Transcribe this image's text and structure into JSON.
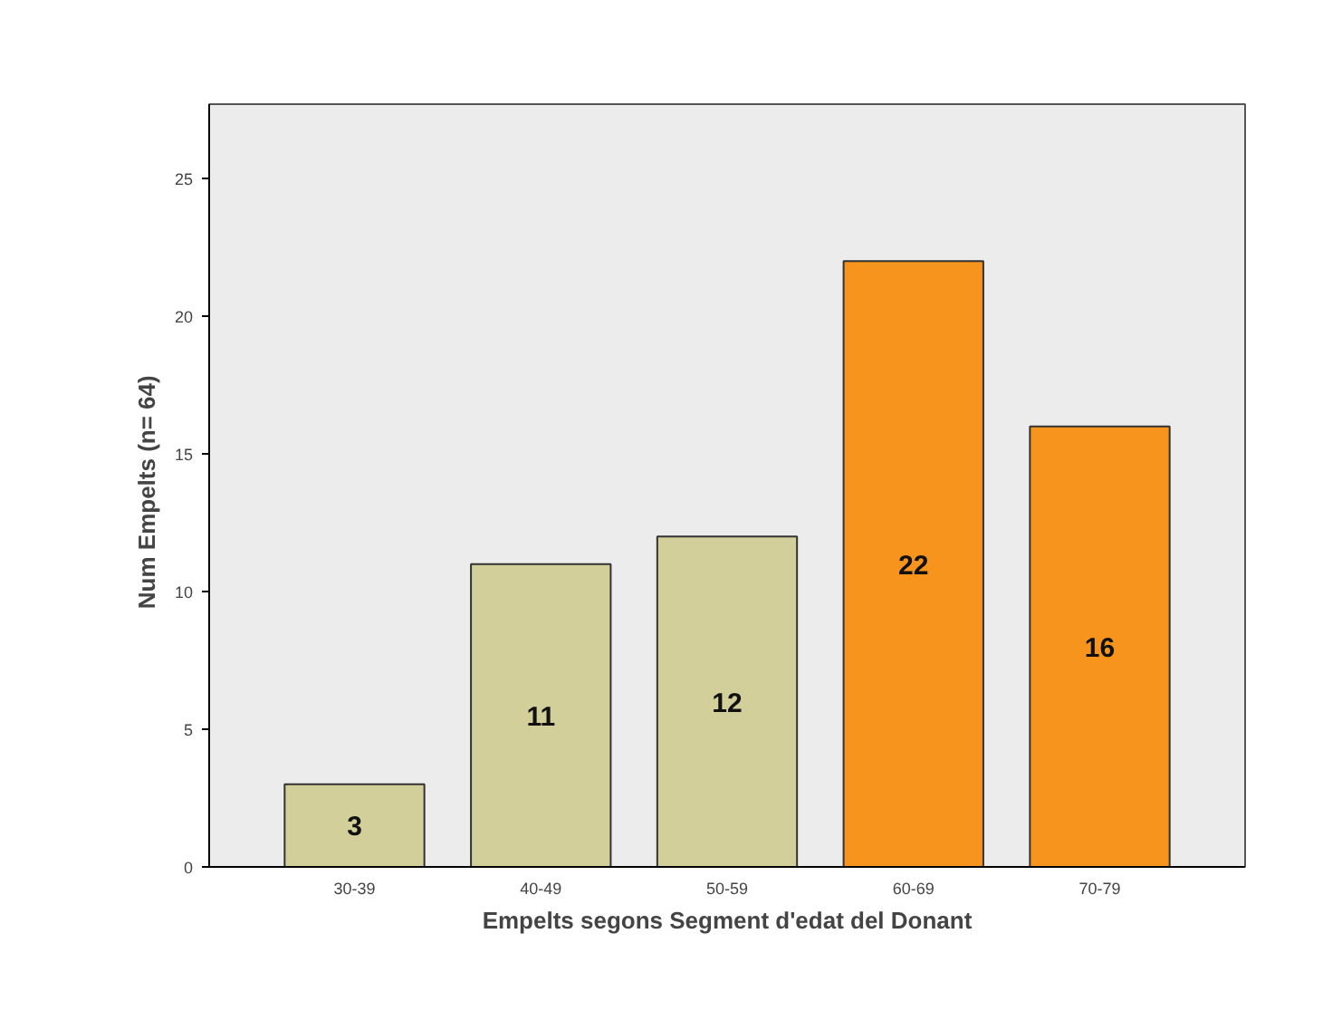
{
  "chart_data": {
    "type": "bar",
    "xlabel": "Empelts segons Segment d'edat del Donant",
    "ylabel": "Num  Empelts  (n= 64)",
    "categories": [
      "30-39",
      "40-49",
      "50-59",
      "60-69",
      "70-79"
    ],
    "values": [
      3,
      11,
      12,
      22,
      16
    ],
    "colors": [
      "#d3cf9b",
      "#d3cf9b",
      "#d3cf9b",
      "#f7941d",
      "#f7941d"
    ],
    "ylim": [
      0,
      27.7
    ],
    "yticks": [
      0,
      5,
      10,
      15,
      20,
      25
    ],
    "grid": false,
    "data_labels": true
  }
}
